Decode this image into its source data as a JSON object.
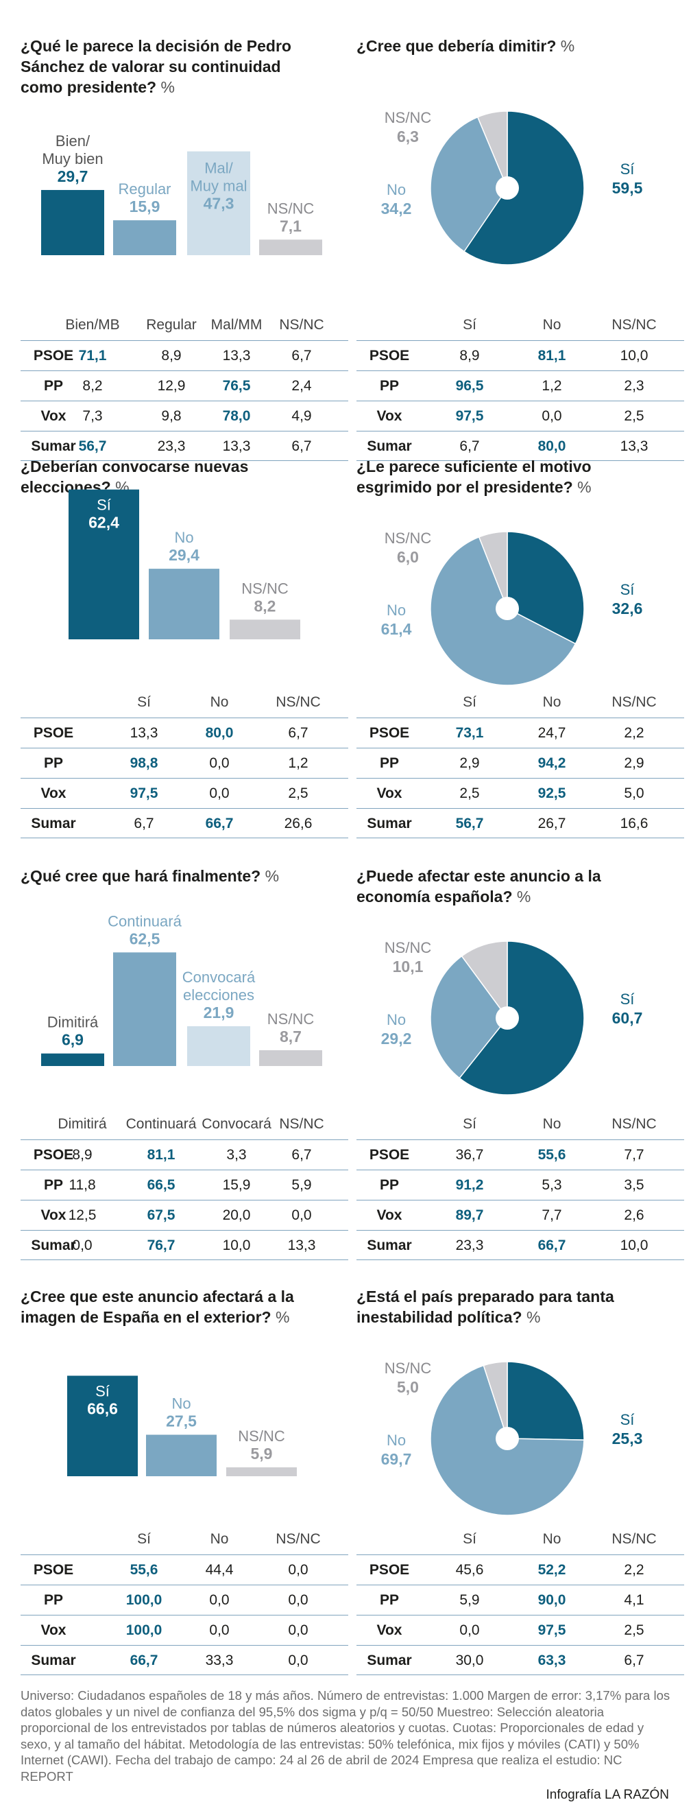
{
  "chart_data": [
    {
      "type": "bar",
      "title": "¿Qué le parece la decisión de Pedro Sánchez de valorar su continuidad como presidente?",
      "unit": "%",
      "categories": [
        "Bien/ Muy bien",
        "Regular",
        "Mal/ Muy mal",
        "NS/NC"
      ],
      "values": [
        "29,7",
        "15,9",
        "47,3",
        "7,1"
      ],
      "colors": [
        "#0e5f7e",
        "#7ba7c2",
        "#cfdfea",
        "#cdcdd1"
      ],
      "table": {
        "columns": [
          "Bien/MB",
          "Regular",
          "Mal/MM",
          "NS/NC"
        ],
        "rows": [
          {
            "party": "PSOE",
            "values": [
              "71,1",
              "8,9",
              "13,3",
              "6,7"
            ],
            "highlight": 0
          },
          {
            "party": "PP",
            "values": [
              "8,2",
              "12,9",
              "76,5",
              "2,4"
            ],
            "highlight": 2
          },
          {
            "party": "Vox",
            "values": [
              "7,3",
              "9,8",
              "78,0",
              "4,9"
            ],
            "highlight": 2
          },
          {
            "party": "Sumar",
            "values": [
              "56,7",
              "23,3",
              "13,3",
              "6,7"
            ],
            "highlight": 0
          }
        ]
      }
    },
    {
      "type": "pie",
      "title": "¿Cree que debería dimitir?",
      "unit": "%",
      "categories": [
        "Sí",
        "No",
        "NS/NC"
      ],
      "values": [
        "59,5",
        "34,2",
        "6,3"
      ],
      "colors": [
        "#0e5f7e",
        "#7ba7c2",
        "#cdcdd1"
      ],
      "table": {
        "columns": [
          "Sí",
          "No",
          "NS/NC"
        ],
        "rows": [
          {
            "party": "PSOE",
            "values": [
              "8,9",
              "81,1",
              "10,0"
            ],
            "highlight": 1
          },
          {
            "party": "PP",
            "values": [
              "96,5",
              "1,2",
              "2,3"
            ],
            "highlight": 0
          },
          {
            "party": "Vox",
            "values": [
              "97,5",
              "0,0",
              "2,5"
            ],
            "highlight": 0
          },
          {
            "party": "Sumar",
            "values": [
              "6,7",
              "80,0",
              "13,3"
            ],
            "highlight": 1
          }
        ]
      }
    },
    {
      "type": "bar",
      "title": "¿Deberían convocarse nuevas elecciones?",
      "unit": "%",
      "categories": [
        "Sí",
        "No",
        "NS/NC"
      ],
      "values": [
        "62,4",
        "29,4",
        "8,2"
      ],
      "colors": [
        "#0e5f7e",
        "#7ba7c2",
        "#cdcdd1"
      ],
      "table": {
        "columns": [
          "Sí",
          "No",
          "NS/NC"
        ],
        "rows": [
          {
            "party": "PSOE",
            "values": [
              "13,3",
              "80,0",
              "6,7"
            ],
            "highlight": 1
          },
          {
            "party": "PP",
            "values": [
              "98,8",
              "0,0",
              "1,2"
            ],
            "highlight": 0
          },
          {
            "party": "Vox",
            "values": [
              "97,5",
              "0,0",
              "2,5"
            ],
            "highlight": 0
          },
          {
            "party": "Sumar",
            "values": [
              "6,7",
              "66,7",
              "26,6"
            ],
            "highlight": 1
          }
        ]
      }
    },
    {
      "type": "pie",
      "title": "¿Le parece suficiente el motivo esgrimido por el presidente?",
      "unit": "%",
      "categories": [
        "Sí",
        "No",
        "NS/NC"
      ],
      "values": [
        "32,6",
        "61,4",
        "6,0"
      ],
      "colors": [
        "#0e5f7e",
        "#7ba7c2",
        "#cdcdd1"
      ],
      "table": {
        "columns": [
          "Sí",
          "No",
          "NS/NC"
        ],
        "rows": [
          {
            "party": "PSOE",
            "values": [
              "73,1",
              "24,7",
              "2,2"
            ],
            "highlight": 0
          },
          {
            "party": "PP",
            "values": [
              "2,9",
              "94,2",
              "2,9"
            ],
            "highlight": 1
          },
          {
            "party": "Vox",
            "values": [
              "2,5",
              "92,5",
              "5,0"
            ],
            "highlight": 1
          },
          {
            "party": "Sumar",
            "values": [
              "56,7",
              "26,7",
              "16,6"
            ],
            "highlight": 0
          }
        ]
      }
    },
    {
      "type": "bar",
      "title": "¿Qué cree que hará finalmente?",
      "unit": "%",
      "categories": [
        "Dimitirá",
        "Continuará",
        "Convocará elecciones",
        "NS/NC"
      ],
      "values": [
        "6,9",
        "62,5",
        "21,9",
        "8,7"
      ],
      "colors": [
        "#0e5f7e",
        "#7ba7c2",
        "#cfdfea",
        "#cdcdd1"
      ],
      "table": {
        "columns": [
          "Dimitirá",
          "Continuará",
          "Convocará",
          "NS/NC"
        ],
        "rows": [
          {
            "party": "PSOE",
            "values": [
              "8,9",
              "81,1",
              "3,3",
              "6,7"
            ],
            "highlight": 1
          },
          {
            "party": "PP",
            "values": [
              "11,8",
              "66,5",
              "15,9",
              "5,9"
            ],
            "highlight": 1
          },
          {
            "party": "Vox",
            "values": [
              "12,5",
              "67,5",
              "20,0",
              "0,0"
            ],
            "highlight": 1
          },
          {
            "party": "Sumar",
            "values": [
              "0,0",
              "76,7",
              "10,0",
              "13,3"
            ],
            "highlight": 1
          }
        ]
      }
    },
    {
      "type": "pie",
      "title": "¿Puede afectar este anuncio a la economía española?",
      "unit": "%",
      "categories": [
        "Sí",
        "No",
        "NS/NC"
      ],
      "values": [
        "60,7",
        "29,2",
        "10,1"
      ],
      "colors": [
        "#0e5f7e",
        "#7ba7c2",
        "#cdcdd1"
      ],
      "table": {
        "columns": [
          "Sí",
          "No",
          "NS/NC"
        ],
        "rows": [
          {
            "party": "PSOE",
            "values": [
              "36,7",
              "55,6",
              "7,7"
            ],
            "highlight": 1
          },
          {
            "party": "PP",
            "values": [
              "91,2",
              "5,3",
              "3,5"
            ],
            "highlight": 0
          },
          {
            "party": "Vox",
            "values": [
              "89,7",
              "7,7",
              "2,6"
            ],
            "highlight": 0
          },
          {
            "party": "Sumar",
            "values": [
              "23,3",
              "66,7",
              "10,0"
            ],
            "highlight": 1
          }
        ]
      }
    },
    {
      "type": "bar",
      "title": "¿Cree que este anuncio afectará a la imagen de España en el exterior?",
      "unit": "%",
      "categories": [
        "Sí",
        "No",
        "NS/NC"
      ],
      "values": [
        "66,6",
        "27,5",
        "5,9"
      ],
      "colors": [
        "#0e5f7e",
        "#7ba7c2",
        "#cdcdd1"
      ],
      "table": {
        "columns": [
          "Sí",
          "No",
          "NS/NC"
        ],
        "rows": [
          {
            "party": "PSOE",
            "values": [
              "55,6",
              "44,4",
              "0,0"
            ],
            "highlight": 0
          },
          {
            "party": "PP",
            "values": [
              "100,0",
              "0,0",
              "0,0"
            ],
            "highlight": 0
          },
          {
            "party": "Vox",
            "values": [
              "100,0",
              "0,0",
              "0,0"
            ],
            "highlight": 0
          },
          {
            "party": "Sumar",
            "values": [
              "66,7",
              "33,3",
              "0,0"
            ],
            "highlight": 0
          }
        ]
      }
    },
    {
      "type": "pie",
      "title": "¿Está el país preparado para tanta inestabilidad política?",
      "unit": "%",
      "categories": [
        "Sí",
        "No",
        "NS/NC"
      ],
      "values": [
        "25,3",
        "69,7",
        "5,0"
      ],
      "colors": [
        "#0e5f7e",
        "#7ba7c2",
        "#cdcdd1"
      ],
      "table": {
        "columns": [
          "Sí",
          "No",
          "NS/NC"
        ],
        "rows": [
          {
            "party": "PSOE",
            "values": [
              "45,6",
              "52,2",
              "2,2"
            ],
            "highlight": 1
          },
          {
            "party": "PP",
            "values": [
              "5,9",
              "90,0",
              "4,1"
            ],
            "highlight": 1
          },
          {
            "party": "Vox",
            "values": [
              "0,0",
              "97,5",
              "2,5"
            ],
            "highlight": 1
          },
          {
            "party": "Sumar",
            "values": [
              "30,0",
              "63,3",
              "6,7"
            ],
            "highlight": 1
          }
        ]
      }
    }
  ],
  "footer": {
    "methodology": "Universo: Ciudadanos españoles de 18 y más años. Número de entrevistas: 1.000 Margen de error: 3,17% para los datos globales y un nivel de confianza del 95,5% dos sigma y p/q = 50/50 Muestreo: Selección aleatoria proporcional de los entrevistados por tablas de números aleatorios y cuotas. Cuotas: Proporcionales de edad y sexo, y al tamaño del hábitat. Metodología de las entrevistas: 50% telefónica, mix fijos y móviles (CATI) y 50% Internet (CAWI). Fecha del trabajo de campo: 24 al 26 de abril de 2024 Empresa que realiza el estudio: NC REPORT",
    "credit": "Infografía LA RAZÓN"
  }
}
